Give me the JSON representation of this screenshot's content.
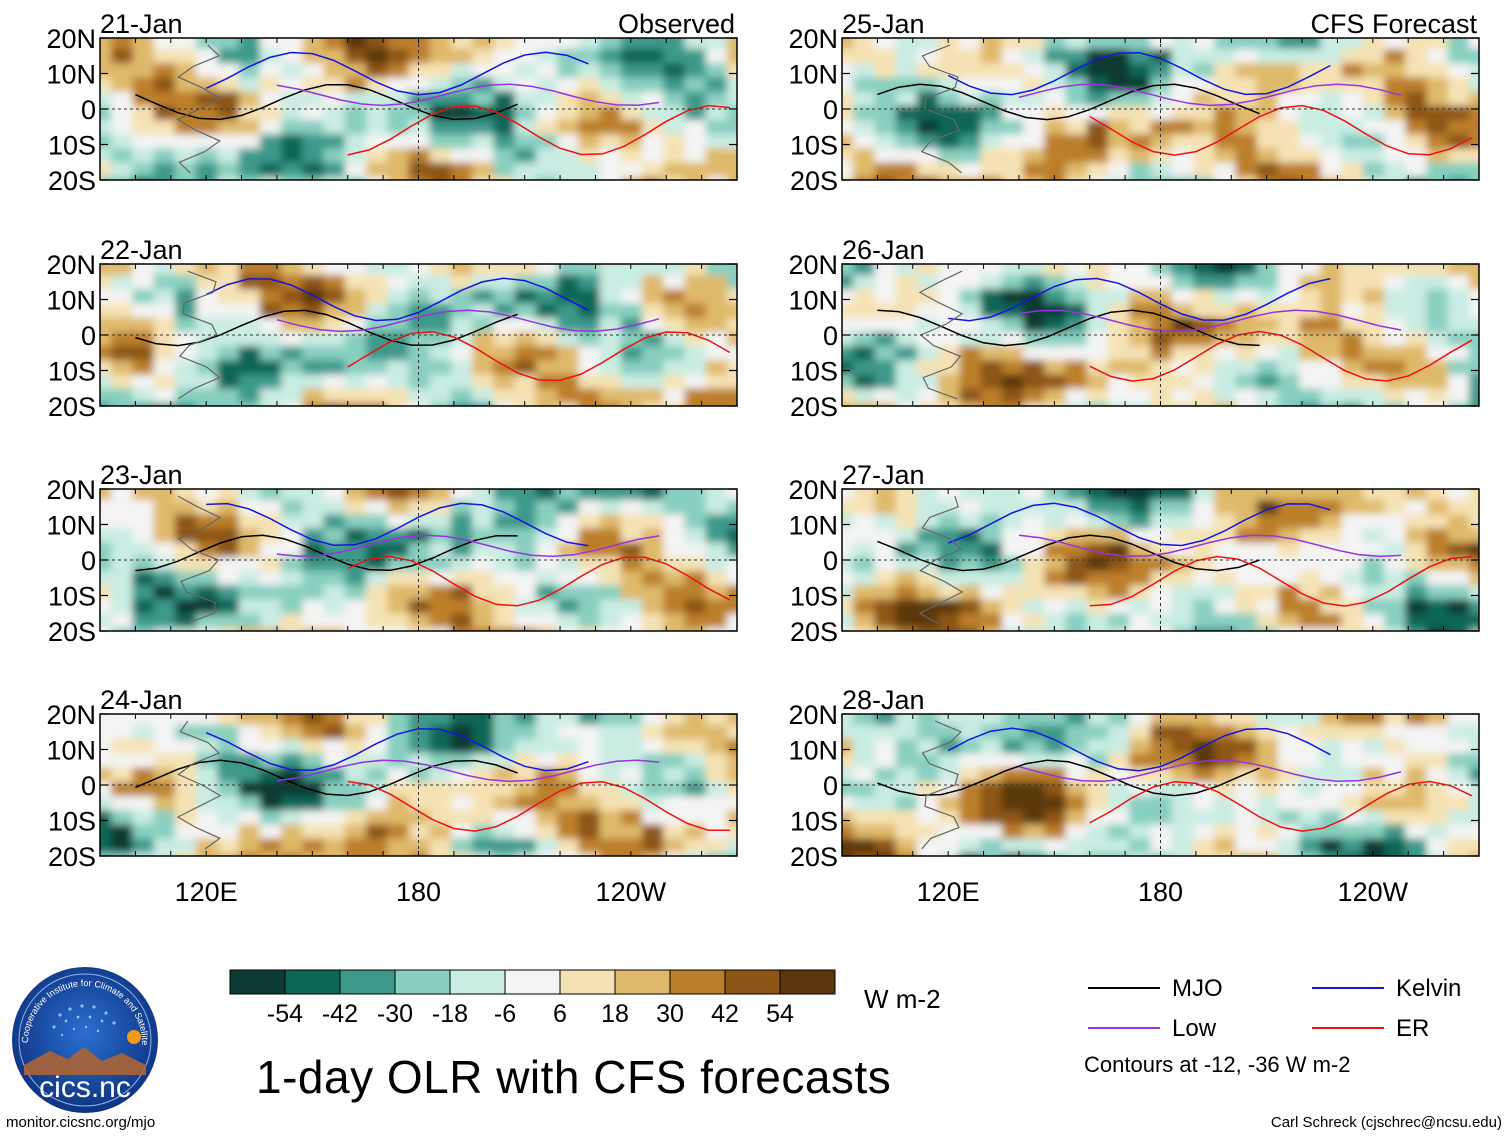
{
  "chart_data": {
    "type": "heatmap",
    "title": "1-day OLR with CFS forecasts",
    "units": "W m-2",
    "columns": [
      {
        "heading": "Observed",
        "panels": [
          "21-Jan",
          "22-Jan",
          "23-Jan",
          "24-Jan"
        ]
      },
      {
        "heading": "CFS Forecast",
        "panels": [
          "25-Jan",
          "26-Jan",
          "27-Jan",
          "28-Jan"
        ]
      }
    ],
    "y_ticks": [
      "20N",
      "10N",
      "0",
      "10S",
      "20S"
    ],
    "x_ticks": [
      "120E",
      "180",
      "120W"
    ],
    "x_range_deg": [
      90,
      270
    ],
    "y_range_deg": [
      -20,
      20
    ],
    "colorbar": {
      "tick_labels": [
        "-54",
        "-42",
        "-30",
        "-18",
        "-6",
        "6",
        "18",
        "30",
        "42",
        "54"
      ],
      "colors": [
        "#0c3b33",
        "#0d6656",
        "#3c998a",
        "#88cfbf",
        "#c9ece3",
        "#f4f4f4",
        "#f5e2b4",
        "#dfb96a",
        "#bb7f2c",
        "#8d5516",
        "#5c3710"
      ]
    },
    "contour_legend": [
      {
        "label": "MJO",
        "color": "#000000"
      },
      {
        "label": "Kelvin",
        "color": "#1515e0"
      },
      {
        "label": "Low",
        "color": "#9933dd"
      },
      {
        "label": "ER",
        "color": "#ee1111"
      }
    ],
    "contour_note": "Contours at -12, -36 W m-2"
  },
  "logo": {
    "text": "cics.nc",
    "ring_text": "Cooperative Institute for Climate and Satellites"
  },
  "footer": {
    "left": "monitor.cicsnc.org/mjo",
    "right": "Carl Schreck (cjschrec@ncsu.edu)"
  }
}
